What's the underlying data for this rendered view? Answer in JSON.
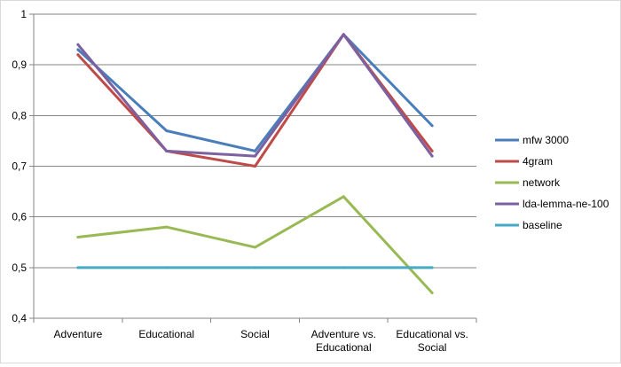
{
  "chart_data": {
    "type": "line",
    "title": "",
    "xlabel": "",
    "ylabel": "",
    "categories": [
      [
        "Adventure"
      ],
      [
        "Educational"
      ],
      [
        "Social"
      ],
      [
        "Adventure vs.",
        "Educational"
      ],
      [
        "Educational vs.",
        "Social"
      ]
    ],
    "ylim": [
      0.4,
      1.0
    ],
    "yticks": [
      "0,4",
      "0,5",
      "0,6",
      "0,7",
      "0,8",
      "0,9",
      "1"
    ],
    "grid": true,
    "legend_position": "right",
    "series": [
      {
        "name": "mfw 3000",
        "color": "#4a7ebb",
        "values": [
          0.93,
          0.77,
          0.73,
          0.96,
          0.78
        ]
      },
      {
        "name": "4gram",
        "color": "#be4b48",
        "values": [
          0.92,
          0.73,
          0.7,
          0.96,
          0.73
        ]
      },
      {
        "name": "network",
        "color": "#98b954",
        "values": [
          0.56,
          0.58,
          0.54,
          0.64,
          0.45
        ]
      },
      {
        "name": "lda-lemma-ne-100",
        "color": "#7d60a0",
        "values": [
          0.94,
          0.73,
          0.72,
          0.96,
          0.72
        ]
      },
      {
        "name": "baseline",
        "color": "#46aac5",
        "values": [
          0.5,
          0.5,
          0.5,
          0.5,
          0.5
        ]
      }
    ]
  }
}
